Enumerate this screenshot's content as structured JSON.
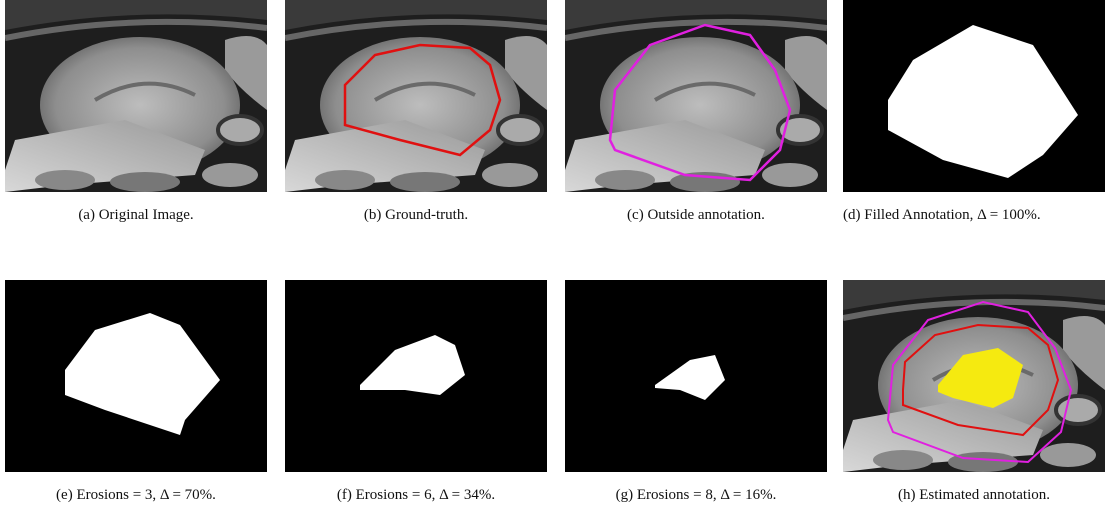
{
  "figures": [
    {
      "caption": "(a) Original Image."
    },
    {
      "caption": "(b) Ground-truth."
    },
    {
      "caption": "(c) Outside annotation."
    },
    {
      "caption": "(d) Filled Annotation, Δ = 100%."
    },
    {
      "caption": "(e) Erosions = 3, Δ = 70%."
    },
    {
      "caption": "(f) Erosions = 6, Δ = 34%."
    },
    {
      "caption": "(g) Erosions = 8, Δ = 16%."
    },
    {
      "caption": "(h) Estimated annotation."
    }
  ]
}
